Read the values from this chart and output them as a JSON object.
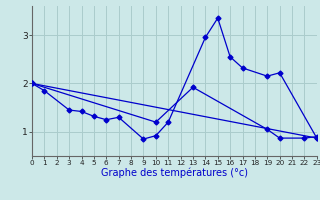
{
  "xlabel": "Graphe des températures (°c)",
  "background_color": "#cce8e8",
  "grid_color": "#aacccc",
  "line_color": "#0000cc",
  "series1_x": [
    0,
    1,
    3,
    4,
    5,
    6,
    7,
    9,
    10,
    11,
    14,
    15,
    16,
    17,
    19,
    20,
    23
  ],
  "series1_y": [
    2.0,
    1.85,
    1.45,
    1.42,
    1.32,
    1.25,
    1.3,
    0.85,
    0.92,
    1.2,
    2.95,
    3.35,
    2.55,
    2.32,
    2.15,
    2.22,
    0.87
  ],
  "series2_x": [
    0,
    23
  ],
  "series2_y": [
    2.0,
    0.87
  ],
  "series3_x": [
    0,
    10,
    13,
    19,
    20,
    22,
    23
  ],
  "series3_y": [
    2.0,
    1.2,
    1.92,
    1.05,
    0.87,
    0.87,
    0.9
  ],
  "xlim": [
    0,
    23
  ],
  "ylim": [
    0.5,
    3.6
  ],
  "yticks": [
    1,
    2,
    3
  ],
  "xticks": [
    0,
    1,
    2,
    3,
    4,
    5,
    6,
    7,
    8,
    9,
    10,
    11,
    12,
    13,
    14,
    15,
    16,
    17,
    18,
    19,
    20,
    21,
    22,
    23
  ]
}
